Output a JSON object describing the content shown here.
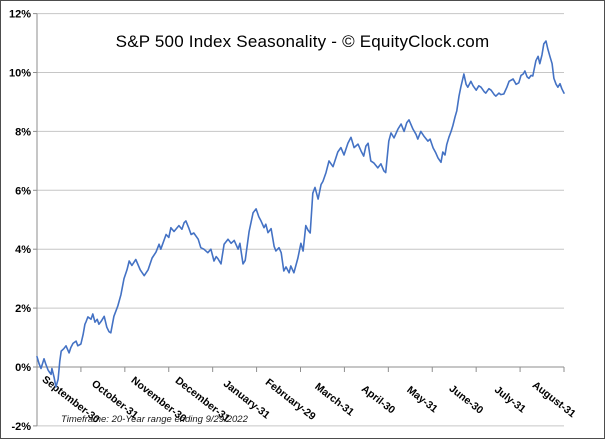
{
  "chart_data": {
    "type": "line",
    "title": "S&P 500 Index Seasonality - © EquityClock.com",
    "footnote": "Timeframe: 20-Year range ending 9/29/2022",
    "grid": "horizontal",
    "legend_position": "none",
    "y_axis": {
      "min": -2,
      "max": 12,
      "step": 2,
      "tick_labels": [
        "12%",
        "10%",
        "8%",
        "6%",
        "4%",
        "2%",
        "0%",
        "-2%"
      ],
      "axis_crosses_at": 0
    },
    "x_axis": {
      "unit": "month-end",
      "tick_labels": [
        "September-30",
        "October-31",
        "November-30",
        "December-31",
        "January-31",
        "February-29",
        "March-31",
        "April-30",
        "May-31",
        "June-30",
        "July-31",
        "August-31"
      ],
      "label_rotation_deg": 38
    },
    "colors": {
      "line": "#4472C4",
      "gridline": "#c6c6c6",
      "axis": "#8e8e8e",
      "text": "#000000",
      "border": "#4d4d4d"
    },
    "series": [
      {
        "color": "#4472C4",
        "points": [
          [
            0,
            0.35
          ],
          [
            0.05,
            0.1
          ],
          [
            0.09,
            -0.05
          ],
          [
            0.16,
            0.28
          ],
          [
            0.2,
            0.1
          ],
          [
            0.25,
            -0.1
          ],
          [
            0.27,
            -0.15
          ],
          [
            0.32,
            -0.25
          ],
          [
            0.34,
            -0.05
          ],
          [
            0.39,
            -0.35
          ],
          [
            0.43,
            -0.68
          ],
          [
            0.48,
            -0.42
          ],
          [
            0.52,
            0.2
          ],
          [
            0.55,
            0.54
          ],
          [
            0.61,
            0.62
          ],
          [
            0.66,
            0.72
          ],
          [
            0.73,
            0.48
          ],
          [
            0.77,
            0.66
          ],
          [
            0.82,
            0.8
          ],
          [
            0.89,
            0.88
          ],
          [
            0.93,
            0.72
          ],
          [
            1.0,
            0.78
          ],
          [
            1.05,
            1.1
          ],
          [
            1.09,
            1.45
          ],
          [
            1.12,
            1.55
          ],
          [
            1.16,
            1.7
          ],
          [
            1.23,
            1.62
          ],
          [
            1.27,
            1.8
          ],
          [
            1.32,
            1.52
          ],
          [
            1.37,
            1.62
          ],
          [
            1.41,
            1.45
          ],
          [
            1.46,
            1.55
          ],
          [
            1.53,
            1.72
          ],
          [
            1.59,
            1.35
          ],
          [
            1.64,
            1.2
          ],
          [
            1.68,
            1.16
          ],
          [
            1.75,
            1.72
          ],
          [
            1.84,
            2.07
          ],
          [
            1.91,
            2.45
          ],
          [
            1.98,
            3.0
          ],
          [
            2.05,
            3.3
          ],
          [
            2.1,
            3.6
          ],
          [
            2.16,
            3.45
          ],
          [
            2.25,
            3.65
          ],
          [
            2.35,
            3.3
          ],
          [
            2.44,
            3.1
          ],
          [
            2.53,
            3.3
          ],
          [
            2.62,
            3.7
          ],
          [
            2.71,
            3.9
          ],
          [
            2.78,
            4.17
          ],
          [
            2.82,
            4.0
          ],
          [
            2.94,
            4.5
          ],
          [
            3.0,
            4.4
          ],
          [
            3.05,
            4.73
          ],
          [
            3.12,
            4.6
          ],
          [
            3.23,
            4.8
          ],
          [
            3.3,
            4.68
          ],
          [
            3.35,
            4.9
          ],
          [
            3.39,
            4.96
          ],
          [
            3.46,
            4.7
          ],
          [
            3.51,
            4.5
          ],
          [
            3.57,
            4.55
          ],
          [
            3.67,
            4.34
          ],
          [
            3.73,
            4.05
          ],
          [
            3.8,
            4.0
          ],
          [
            3.89,
            3.88
          ],
          [
            3.96,
            4.0
          ],
          [
            4.03,
            3.6
          ],
          [
            4.08,
            3.75
          ],
          [
            4.12,
            3.68
          ],
          [
            4.19,
            3.5
          ],
          [
            4.26,
            4.17
          ],
          [
            4.35,
            4.34
          ],
          [
            4.42,
            4.2
          ],
          [
            4.49,
            4.3
          ],
          [
            4.58,
            4.0
          ],
          [
            4.62,
            4.2
          ],
          [
            4.69,
            3.5
          ],
          [
            4.74,
            3.62
          ],
          [
            4.83,
            4.6
          ],
          [
            4.92,
            5.24
          ],
          [
            4.99,
            5.37
          ],
          [
            5.05,
            5.1
          ],
          [
            5.1,
            4.96
          ],
          [
            5.17,
            4.73
          ],
          [
            5.21,
            4.85
          ],
          [
            5.26,
            4.56
          ],
          [
            5.33,
            4.7
          ],
          [
            5.4,
            4.1
          ],
          [
            5.44,
            3.94
          ],
          [
            5.51,
            4.05
          ],
          [
            5.56,
            3.88
          ],
          [
            5.62,
            3.26
          ],
          [
            5.67,
            3.4
          ],
          [
            5.74,
            3.2
          ],
          [
            5.78,
            3.43
          ],
          [
            5.85,
            3.2
          ],
          [
            5.94,
            3.7
          ],
          [
            6.01,
            4.2
          ],
          [
            6.06,
            3.94
          ],
          [
            6.12,
            4.8
          ],
          [
            6.17,
            4.65
          ],
          [
            6.22,
            4.55
          ],
          [
            6.28,
            5.9
          ],
          [
            6.33,
            6.1
          ],
          [
            6.4,
            5.7
          ],
          [
            6.47,
            6.2
          ],
          [
            6.51,
            6.3
          ],
          [
            6.58,
            6.6
          ],
          [
            6.65,
            7.0
          ],
          [
            6.74,
            6.8
          ],
          [
            6.85,
            7.3
          ],
          [
            6.92,
            7.45
          ],
          [
            6.99,
            7.2
          ],
          [
            7.08,
            7.6
          ],
          [
            7.15,
            7.8
          ],
          [
            7.22,
            7.45
          ],
          [
            7.31,
            7.57
          ],
          [
            7.38,
            7.33
          ],
          [
            7.44,
            7.16
          ],
          [
            7.49,
            7.5
          ],
          [
            7.54,
            7.6
          ],
          [
            7.6,
            7.0
          ],
          [
            7.67,
            6.93
          ],
          [
            7.76,
            6.76
          ],
          [
            7.83,
            6.9
          ],
          [
            7.9,
            6.66
          ],
          [
            7.94,
            6.6
          ],
          [
            8.01,
            7.67
          ],
          [
            8.06,
            7.95
          ],
          [
            8.13,
            7.78
          ],
          [
            8.22,
            8.08
          ],
          [
            8.29,
            8.25
          ],
          [
            8.36,
            8.0
          ],
          [
            8.42,
            8.3
          ],
          [
            8.47,
            8.39
          ],
          [
            8.56,
            8.08
          ],
          [
            8.63,
            7.9
          ],
          [
            8.67,
            7.74
          ],
          [
            8.74,
            8.0
          ],
          [
            8.81,
            7.84
          ],
          [
            8.9,
            7.67
          ],
          [
            8.95,
            7.74
          ],
          [
            9.02,
            7.44
          ],
          [
            9.08,
            7.27
          ],
          [
            9.13,
            7.1
          ],
          [
            9.2,
            6.95
          ],
          [
            9.24,
            7.3
          ],
          [
            9.29,
            7.2
          ],
          [
            9.33,
            7.55
          ],
          [
            9.38,
            7.8
          ],
          [
            9.43,
            8.0
          ],
          [
            9.47,
            8.2
          ],
          [
            9.52,
            8.5
          ],
          [
            9.56,
            8.7
          ],
          [
            9.61,
            9.2
          ],
          [
            9.65,
            9.5
          ],
          [
            9.72,
            9.95
          ],
          [
            9.77,
            9.6
          ],
          [
            9.81,
            9.5
          ],
          [
            9.88,
            9.7
          ],
          [
            9.93,
            9.55
          ],
          [
            10.0,
            9.4
          ],
          [
            10.06,
            9.55
          ],
          [
            10.11,
            9.5
          ],
          [
            10.18,
            9.35
          ],
          [
            10.22,
            9.3
          ],
          [
            10.29,
            9.45
          ],
          [
            10.34,
            9.4
          ],
          [
            10.41,
            9.25
          ],
          [
            10.45,
            9.2
          ],
          [
            10.52,
            9.3
          ],
          [
            10.56,
            9.25
          ],
          [
            10.63,
            9.27
          ],
          [
            10.7,
            9.5
          ],
          [
            10.75,
            9.7
          ],
          [
            10.84,
            9.78
          ],
          [
            10.91,
            9.6
          ],
          [
            10.97,
            9.65
          ],
          [
            11.02,
            9.9
          ],
          [
            11.07,
            9.95
          ],
          [
            11.11,
            10.05
          ],
          [
            11.16,
            9.85
          ],
          [
            11.2,
            9.8
          ],
          [
            11.25,
            9.9
          ],
          [
            11.29,
            9.88
          ],
          [
            11.36,
            10.4
          ],
          [
            11.41,
            10.55
          ],
          [
            11.45,
            10.3
          ],
          [
            11.5,
            10.6
          ],
          [
            11.54,
            10.97
          ],
          [
            11.59,
            11.07
          ],
          [
            11.63,
            10.8
          ],
          [
            11.68,
            10.55
          ],
          [
            11.73,
            10.3
          ],
          [
            11.77,
            9.8
          ],
          [
            11.82,
            9.6
          ],
          [
            11.86,
            9.5
          ],
          [
            11.91,
            9.62
          ],
          [
            11.95,
            9.45
          ],
          [
            12.0,
            9.3
          ]
        ]
      }
    ]
  }
}
